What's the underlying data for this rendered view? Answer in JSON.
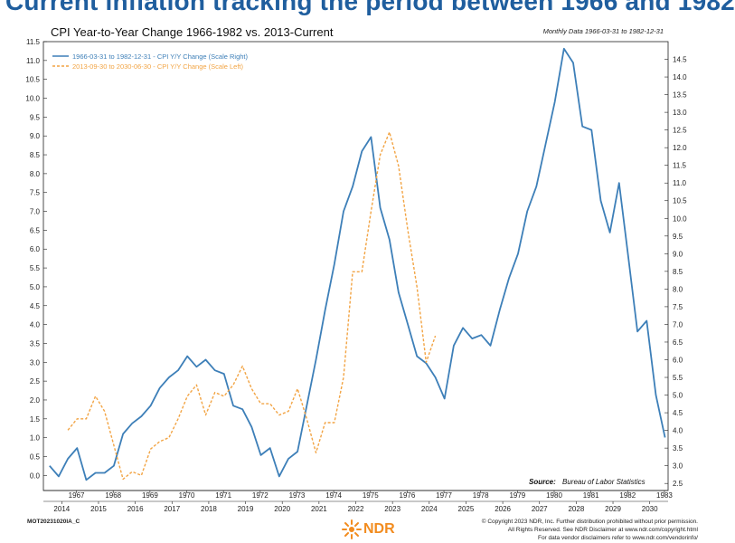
{
  "headline": "Current inflation tracking the period between 1966 and 1982",
  "chart_data": {
    "type": "line",
    "title": "CPI Year-to-Year Change 1966-1982 vs. 2013-Current",
    "note": "Monthly Data 1966-03-31 to 1982-12-31",
    "source_label": "Source:",
    "source_text": "Bureau of Labor Statistics",
    "legend_position": "top-left",
    "grid": false,
    "y_left": {
      "range": [
        -0.4,
        11.5
      ],
      "ticks": [
        "0.0",
        "0.5",
        "1.0",
        "1.5",
        "2.0",
        "2.5",
        "3.0",
        "3.5",
        "4.0",
        "4.5",
        "5.0",
        "5.5",
        "6.0",
        "6.5",
        "7.0",
        "7.5",
        "8.0",
        "8.5",
        "9.0",
        "9.5",
        "10.0",
        "10.5",
        "11.0",
        "11.5"
      ]
    },
    "y_right": {
      "range": [
        2.3,
        15.0
      ],
      "ticks": [
        "2.5",
        "3.0",
        "3.5",
        "4.0",
        "4.5",
        "5.0",
        "5.5",
        "6.0",
        "6.5",
        "7.0",
        "7.5",
        "8.0",
        "8.5",
        "9.0",
        "9.5",
        "10.0",
        "10.5",
        "11.0",
        "11.5",
        "12.0",
        "12.5",
        "13.0",
        "13.5",
        "14.0",
        "14.5"
      ]
    },
    "x_top_axis": [
      "1967",
      "1968",
      "1969",
      "1970",
      "1971",
      "1972",
      "1973",
      "1974",
      "1975",
      "1976",
      "1977",
      "1978",
      "1979",
      "1980",
      "1981",
      "1982",
      "1983"
    ],
    "x_bottom_axis": [
      "2014",
      "2015",
      "2016",
      "2017",
      "2018",
      "2019",
      "2020",
      "2021",
      "2022",
      "2023",
      "2024",
      "2025",
      "2026",
      "2027",
      "2028",
      "2029",
      "2030"
    ],
    "series": [
      {
        "name": "1966-03-31 to 1982-12-31 - CPI Y/Y Change (Scale Right)",
        "color": "#3d7fb8",
        "dash": "solid",
        "axis": "right",
        "points": [
          [
            "1966-03",
            3.0
          ],
          [
            "1966-06",
            2.7
          ],
          [
            "1966-09",
            3.2
          ],
          [
            "1966-12",
            3.5
          ],
          [
            "1967-03",
            2.6
          ],
          [
            "1967-06",
            2.8
          ],
          [
            "1967-09",
            2.8
          ],
          [
            "1967-12",
            3.0
          ],
          [
            "1968-03",
            3.9
          ],
          [
            "1968-06",
            4.2
          ],
          [
            "1968-09",
            4.4
          ],
          [
            "1968-12",
            4.7
          ],
          [
            "1969-03",
            5.2
          ],
          [
            "1969-06",
            5.5
          ],
          [
            "1969-09",
            5.7
          ],
          [
            "1969-12",
            6.1
          ],
          [
            "1970-03",
            5.8
          ],
          [
            "1970-06",
            6.0
          ],
          [
            "1970-09",
            5.7
          ],
          [
            "1970-12",
            5.6
          ],
          [
            "1971-03",
            4.7
          ],
          [
            "1971-06",
            4.6
          ],
          [
            "1971-09",
            4.1
          ],
          [
            "1971-12",
            3.3
          ],
          [
            "1972-03",
            3.5
          ],
          [
            "1972-06",
            2.7
          ],
          [
            "1972-09",
            3.2
          ],
          [
            "1972-12",
            3.4
          ],
          [
            "1973-03",
            4.7
          ],
          [
            "1973-06",
            6.0
          ],
          [
            "1973-09",
            7.4
          ],
          [
            "1973-12",
            8.7
          ],
          [
            "1974-03",
            10.2
          ],
          [
            "1974-06",
            10.9
          ],
          [
            "1974-09",
            11.9
          ],
          [
            "1974-12",
            12.3
          ],
          [
            "1975-03",
            10.3
          ],
          [
            "1975-06",
            9.4
          ],
          [
            "1975-09",
            7.9
          ],
          [
            "1975-12",
            7.0
          ],
          [
            "1976-03",
            6.1
          ],
          [
            "1976-06",
            5.9
          ],
          [
            "1976-09",
            5.5
          ],
          [
            "1976-12",
            4.9
          ],
          [
            "1977-03",
            6.4
          ],
          [
            "1977-06",
            6.9
          ],
          [
            "1977-09",
            6.6
          ],
          [
            "1977-12",
            6.7
          ],
          [
            "1978-03",
            6.4
          ],
          [
            "1978-06",
            7.4
          ],
          [
            "1978-09",
            8.3
          ],
          [
            "1978-12",
            9.0
          ],
          [
            "1979-03",
            10.2
          ],
          [
            "1979-06",
            10.9
          ],
          [
            "1979-09",
            12.1
          ],
          [
            "1979-12",
            13.3
          ],
          [
            "1980-03",
            14.8
          ],
          [
            "1980-06",
            14.4
          ],
          [
            "1980-09",
            12.6
          ],
          [
            "1980-12",
            12.5
          ],
          [
            "1981-03",
            10.5
          ],
          [
            "1981-06",
            9.6
          ],
          [
            "1981-09",
            11.0
          ],
          [
            "1981-12",
            8.9
          ],
          [
            "1982-03",
            6.8
          ],
          [
            "1982-06",
            7.1
          ],
          [
            "1982-09",
            5.0
          ],
          [
            "1982-12",
            3.8
          ]
        ]
      },
      {
        "name": "2013-09-30 to 2030-06-30 - CPI Y/Y Change (Scale Left)",
        "color": "#f2a444",
        "dash": "dashed",
        "axis": "left",
        "points": [
          [
            "2013-09",
            1.2
          ],
          [
            "2013-12",
            1.5
          ],
          [
            "2014-03",
            1.5
          ],
          [
            "2014-06",
            2.1
          ],
          [
            "2014-09",
            1.7
          ],
          [
            "2014-12",
            0.8
          ],
          [
            "2015-03",
            -0.1
          ],
          [
            "2015-06",
            0.1
          ],
          [
            "2015-09",
            0.0
          ],
          [
            "2015-12",
            0.7
          ],
          [
            "2016-03",
            0.9
          ],
          [
            "2016-06",
            1.0
          ],
          [
            "2016-09",
            1.5
          ],
          [
            "2016-12",
            2.1
          ],
          [
            "2017-03",
            2.4
          ],
          [
            "2017-06",
            1.6
          ],
          [
            "2017-09",
            2.2
          ],
          [
            "2017-12",
            2.1
          ],
          [
            "2018-03",
            2.4
          ],
          [
            "2018-06",
            2.9
          ],
          [
            "2018-09",
            2.3
          ],
          [
            "2018-12",
            1.9
          ],
          [
            "2019-03",
            1.9
          ],
          [
            "2019-06",
            1.6
          ],
          [
            "2019-09",
            1.7
          ],
          [
            "2019-12",
            2.3
          ],
          [
            "2020-03",
            1.5
          ],
          [
            "2020-06",
            0.6
          ],
          [
            "2020-09",
            1.4
          ],
          [
            "2020-12",
            1.4
          ],
          [
            "2021-03",
            2.6
          ],
          [
            "2021-06",
            5.4
          ],
          [
            "2021-09",
            5.4
          ],
          [
            "2021-12",
            7.0
          ],
          [
            "2022-03",
            8.5
          ],
          [
            "2022-06",
            9.1
          ],
          [
            "2022-09",
            8.2
          ],
          [
            "2022-12",
            6.5
          ],
          [
            "2023-03",
            5.0
          ],
          [
            "2023-06",
            3.0
          ],
          [
            "2023-09",
            3.7
          ]
        ]
      }
    ]
  },
  "footer": {
    "code": "MOT20231020IA_C",
    "copyright_lines": [
      "© Copyright 2023 NDR, Inc. Further distribution prohibited without prior permission.",
      "All Rights Reserved. See NDR Disclaimer at www.ndr.com/copyright.html",
      "For data vendor disclaimers refer to www.ndr.com/vendorinfo/"
    ],
    "logo_text": "NDR",
    "logo_color": "#f28c1f"
  }
}
